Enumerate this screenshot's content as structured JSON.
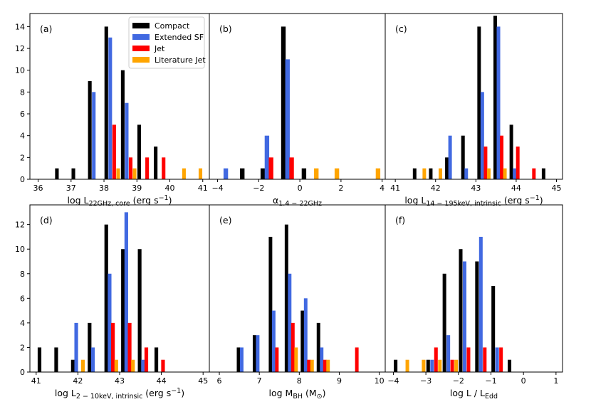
{
  "figure": {
    "legend": [
      {
        "name": "Compact",
        "color": "#000000"
      },
      {
        "name": "Extended SF",
        "color": "#4169e1"
      },
      {
        "name": "Jet",
        "color": "#ff0000"
      },
      {
        "name": "Literature Jet",
        "color": "#ffa500"
      }
    ],
    "legend_location": "top-right of panel (a)"
  },
  "chart_data": [
    {
      "type": "bar",
      "panel": "(a)",
      "xlabel_main": "log L",
      "xlabel_sub": "22GHz, core",
      "xlabel_tail": " (erg s",
      "xlabel_sup": "−1",
      "xlabel_end": ")",
      "xlim": [
        35.75,
        41.2
      ],
      "ylim": [
        0,
        15.2
      ],
      "xticks": [
        "36",
        "37",
        "38",
        "39",
        "40",
        "41"
      ],
      "xtick_values": [
        36,
        37,
        38,
        39,
        40,
        41
      ],
      "yticks": [
        "0",
        "2",
        "4",
        "6",
        "8",
        "10",
        "12",
        "14"
      ],
      "ytick_values": [
        0,
        2,
        4,
        6,
        8,
        10,
        12,
        14
      ],
      "bin_width": 0.5,
      "offsets": [
        -0.18,
        -0.06,
        0.06,
        0.18
      ],
      "series": [
        {
          "name": "Compact",
          "centers": [
            36.75,
            37.25,
            37.75,
            38.25,
            38.75,
            39.25,
            39.75
          ],
          "values": [
            1,
            1,
            9,
            14,
            10,
            5,
            3
          ]
        },
        {
          "name": "Extended SF",
          "centers": [
            37.75,
            38.25,
            38.75
          ],
          "values": [
            8,
            13,
            7
          ]
        },
        {
          "name": "Jet",
          "centers": [
            38.25,
            38.75,
            39.25,
            39.75
          ],
          "values": [
            5,
            2,
            2,
            2
          ]
        },
        {
          "name": "Literature Jet",
          "centers": [
            38.25,
            38.75,
            40.25,
            40.75
          ],
          "values": [
            1,
            1,
            1,
            1
          ]
        }
      ]
    },
    {
      "type": "bar",
      "panel": "(b)",
      "xlabel_main": "α",
      "xlabel_sub": "1.4 − 22GHz",
      "xlabel_tail": "",
      "xlabel_sup": "",
      "xlabel_end": "",
      "xlim": [
        -4.4,
        4.15
      ],
      "ylim": [
        0,
        15.2
      ],
      "xticks": [
        "−4",
        "−2",
        "0",
        "2",
        "4"
      ],
      "xtick_values": [
        -4,
        -2,
        0,
        2,
        4
      ],
      "yticks": [],
      "ytick_values": [],
      "bin_width": 1.0,
      "offsets": [
        -0.3,
        -0.1,
        0.1,
        0.3
      ],
      "series": [
        {
          "name": "Compact",
          "centers": [
            -2.5,
            -1.5,
            -0.5,
            0.5
          ],
          "values": [
            1,
            1,
            14,
            1
          ]
        },
        {
          "name": "Extended SF",
          "centers": [
            -3.5,
            -1.5,
            -0.5
          ],
          "values": [
            1,
            4,
            11
          ]
        },
        {
          "name": "Jet",
          "centers": [
            -1.5,
            -0.5
          ],
          "values": [
            2,
            2
          ]
        },
        {
          "name": "Literature Jet",
          "centers": [
            0.5,
            1.5,
            3.5
          ],
          "values": [
            1,
            1,
            1
          ]
        }
      ]
    },
    {
      "type": "bar",
      "panel": "(c)",
      "xlabel_main": "log L",
      "xlabel_sub": "14 − 195keV, intrinsic",
      "xlabel_tail": " (erg s",
      "xlabel_sup": "−1",
      "xlabel_end": ")",
      "xlim": [
        40.75,
        45.15
      ],
      "ylim": [
        0,
        15.2
      ],
      "xticks": [
        "41",
        "42",
        "43",
        "44",
        "45"
      ],
      "xtick_values": [
        41,
        42,
        43,
        44,
        45
      ],
      "yticks": [],
      "ytick_values": [],
      "bin_width": 0.4,
      "offsets": [
        -0.12,
        -0.04,
        0.04,
        0.12
      ],
      "series": [
        {
          "name": "Compact",
          "centers": [
            41.6,
            42.0,
            42.4,
            42.8,
            43.2,
            43.6,
            44.0,
            44.8
          ],
          "values": [
            1,
            1,
            2,
            4,
            14,
            15,
            5,
            1
          ]
        },
        {
          "name": "Extended SF",
          "centers": [
            42.4,
            42.8,
            43.2,
            43.6,
            44.0
          ],
          "values": [
            4,
            1,
            8,
            14,
            1
          ]
        },
        {
          "name": "Jet",
          "centers": [
            43.2,
            43.6,
            44.0,
            44.4
          ],
          "values": [
            3,
            4,
            3,
            1
          ]
        },
        {
          "name": "Literature Jet",
          "centers": [
            41.6,
            42.0,
            43.2,
            43.6
          ],
          "values": [
            1,
            1,
            1,
            1
          ]
        }
      ]
    },
    {
      "type": "bar",
      "panel": "(d)",
      "xlabel_main": "log L",
      "xlabel_sub": "2 − 10keV, intrinsic",
      "xlabel_tail": " (erg s",
      "xlabel_sup": "−1",
      "xlabel_end": ")",
      "xlim": [
        40.85,
        45.15
      ],
      "ylim": [
        0,
        13.6
      ],
      "xticks": [
        "41",
        "42",
        "43",
        "44",
        "45"
      ],
      "xtick_values": [
        41,
        42,
        43,
        44,
        45
      ],
      "yticks": [
        "0",
        "2",
        "4",
        "6",
        "8",
        "10",
        "12"
      ],
      "ytick_values": [
        0,
        2,
        4,
        6,
        8,
        10,
        12
      ],
      "bin_width": 0.4,
      "offsets": [
        -0.12,
        -0.04,
        0.04,
        0.12
      ],
      "series": [
        {
          "name": "Compact",
          "centers": [
            41.2,
            41.6,
            42.0,
            42.4,
            42.8,
            43.2,
            43.6,
            44.0
          ],
          "values": [
            2,
            2,
            1,
            4,
            12,
            10,
            10,
            2
          ]
        },
        {
          "name": "Extended SF",
          "centers": [
            42.0,
            42.4,
            42.8,
            43.2,
            43.6
          ],
          "values": [
            4,
            2,
            8,
            13,
            1
          ]
        },
        {
          "name": "Jet",
          "centers": [
            42.8,
            43.2,
            43.6,
            44.0
          ],
          "values": [
            4,
            4,
            2,
            1
          ]
        },
        {
          "name": "Literature Jet",
          "centers": [
            42.0,
            42.8,
            43.2
          ],
          "values": [
            1,
            1,
            1
          ]
        }
      ]
    },
    {
      "type": "bar",
      "panel": "(e)",
      "xlabel_main": "log M",
      "xlabel_sub": "BH",
      "xlabel_tail": " (M",
      "xlabel_sup": "",
      "xlabel_sub2": "⊙",
      "xlabel_end": ")",
      "xlim": [
        5.75,
        10.15
      ],
      "ylim": [
        0,
        13.6
      ],
      "xticks": [
        "6",
        "7",
        "8",
        "9",
        "10"
      ],
      "xtick_values": [
        6,
        7,
        8,
        9,
        10
      ],
      "yticks": [],
      "ytick_values": [],
      "bin_width": 0.4,
      "offsets": [
        -0.12,
        -0.04,
        0.04,
        0.12
      ],
      "series": [
        {
          "name": "Compact",
          "centers": [
            6.6,
            7.0,
            7.4,
            7.8,
            8.2,
            8.6
          ],
          "values": [
            2,
            3,
            11,
            12,
            5,
            4
          ]
        },
        {
          "name": "Extended SF",
          "centers": [
            6.6,
            7.0,
            7.4,
            7.8,
            8.2,
            8.6
          ],
          "values": [
            2,
            3,
            5,
            8,
            6,
            2
          ]
        },
        {
          "name": "Jet",
          "centers": [
            7.4,
            7.8,
            8.2,
            8.6,
            9.4
          ],
          "values": [
            2,
            4,
            1,
            1,
            2
          ]
        },
        {
          "name": "Literature Jet",
          "centers": [
            7.8,
            8.2,
            8.6
          ],
          "values": [
            2,
            1,
            1
          ]
        }
      ]
    },
    {
      "type": "bar",
      "panel": "(f)",
      "xlabel_main": "log L / L",
      "xlabel_sub": "Edd",
      "xlabel_tail": "",
      "xlabel_sup": "",
      "xlabel_end": "",
      "xlim": [
        -4.25,
        1.2
      ],
      "ylim": [
        0,
        13.6
      ],
      "xticks": [
        "−4",
        "−3",
        "−2",
        "−1",
        "0",
        "1"
      ],
      "xtick_values": [
        -4,
        -3,
        -2,
        -1,
        0,
        1
      ],
      "yticks": [],
      "ytick_values": [],
      "bin_width": 0.5,
      "offsets": [
        -0.18,
        -0.06,
        0.06,
        0.18
      ],
      "series": [
        {
          "name": "Compact",
          "centers": [
            -3.75,
            -2.75,
            -2.25,
            -1.75,
            -1.25,
            -0.75,
            -0.25
          ],
          "values": [
            1,
            1,
            8,
            10,
            9,
            7,
            1
          ]
        },
        {
          "name": "Extended SF",
          "centers": [
            -2.75,
            -2.25,
            -1.75,
            -1.25,
            -0.75
          ],
          "values": [
            1,
            3,
            9,
            11,
            2
          ]
        },
        {
          "name": "Jet",
          "centers": [
            -2.75,
            -2.25,
            -1.75,
            -1.25,
            -0.75
          ],
          "values": [
            2,
            1,
            2,
            2,
            2
          ]
        },
        {
          "name": "Literature Jet",
          "centers": [
            -3.75,
            -3.25,
            -2.75,
            -2.25
          ],
          "values": [
            1,
            1,
            1,
            1
          ]
        }
      ]
    }
  ]
}
